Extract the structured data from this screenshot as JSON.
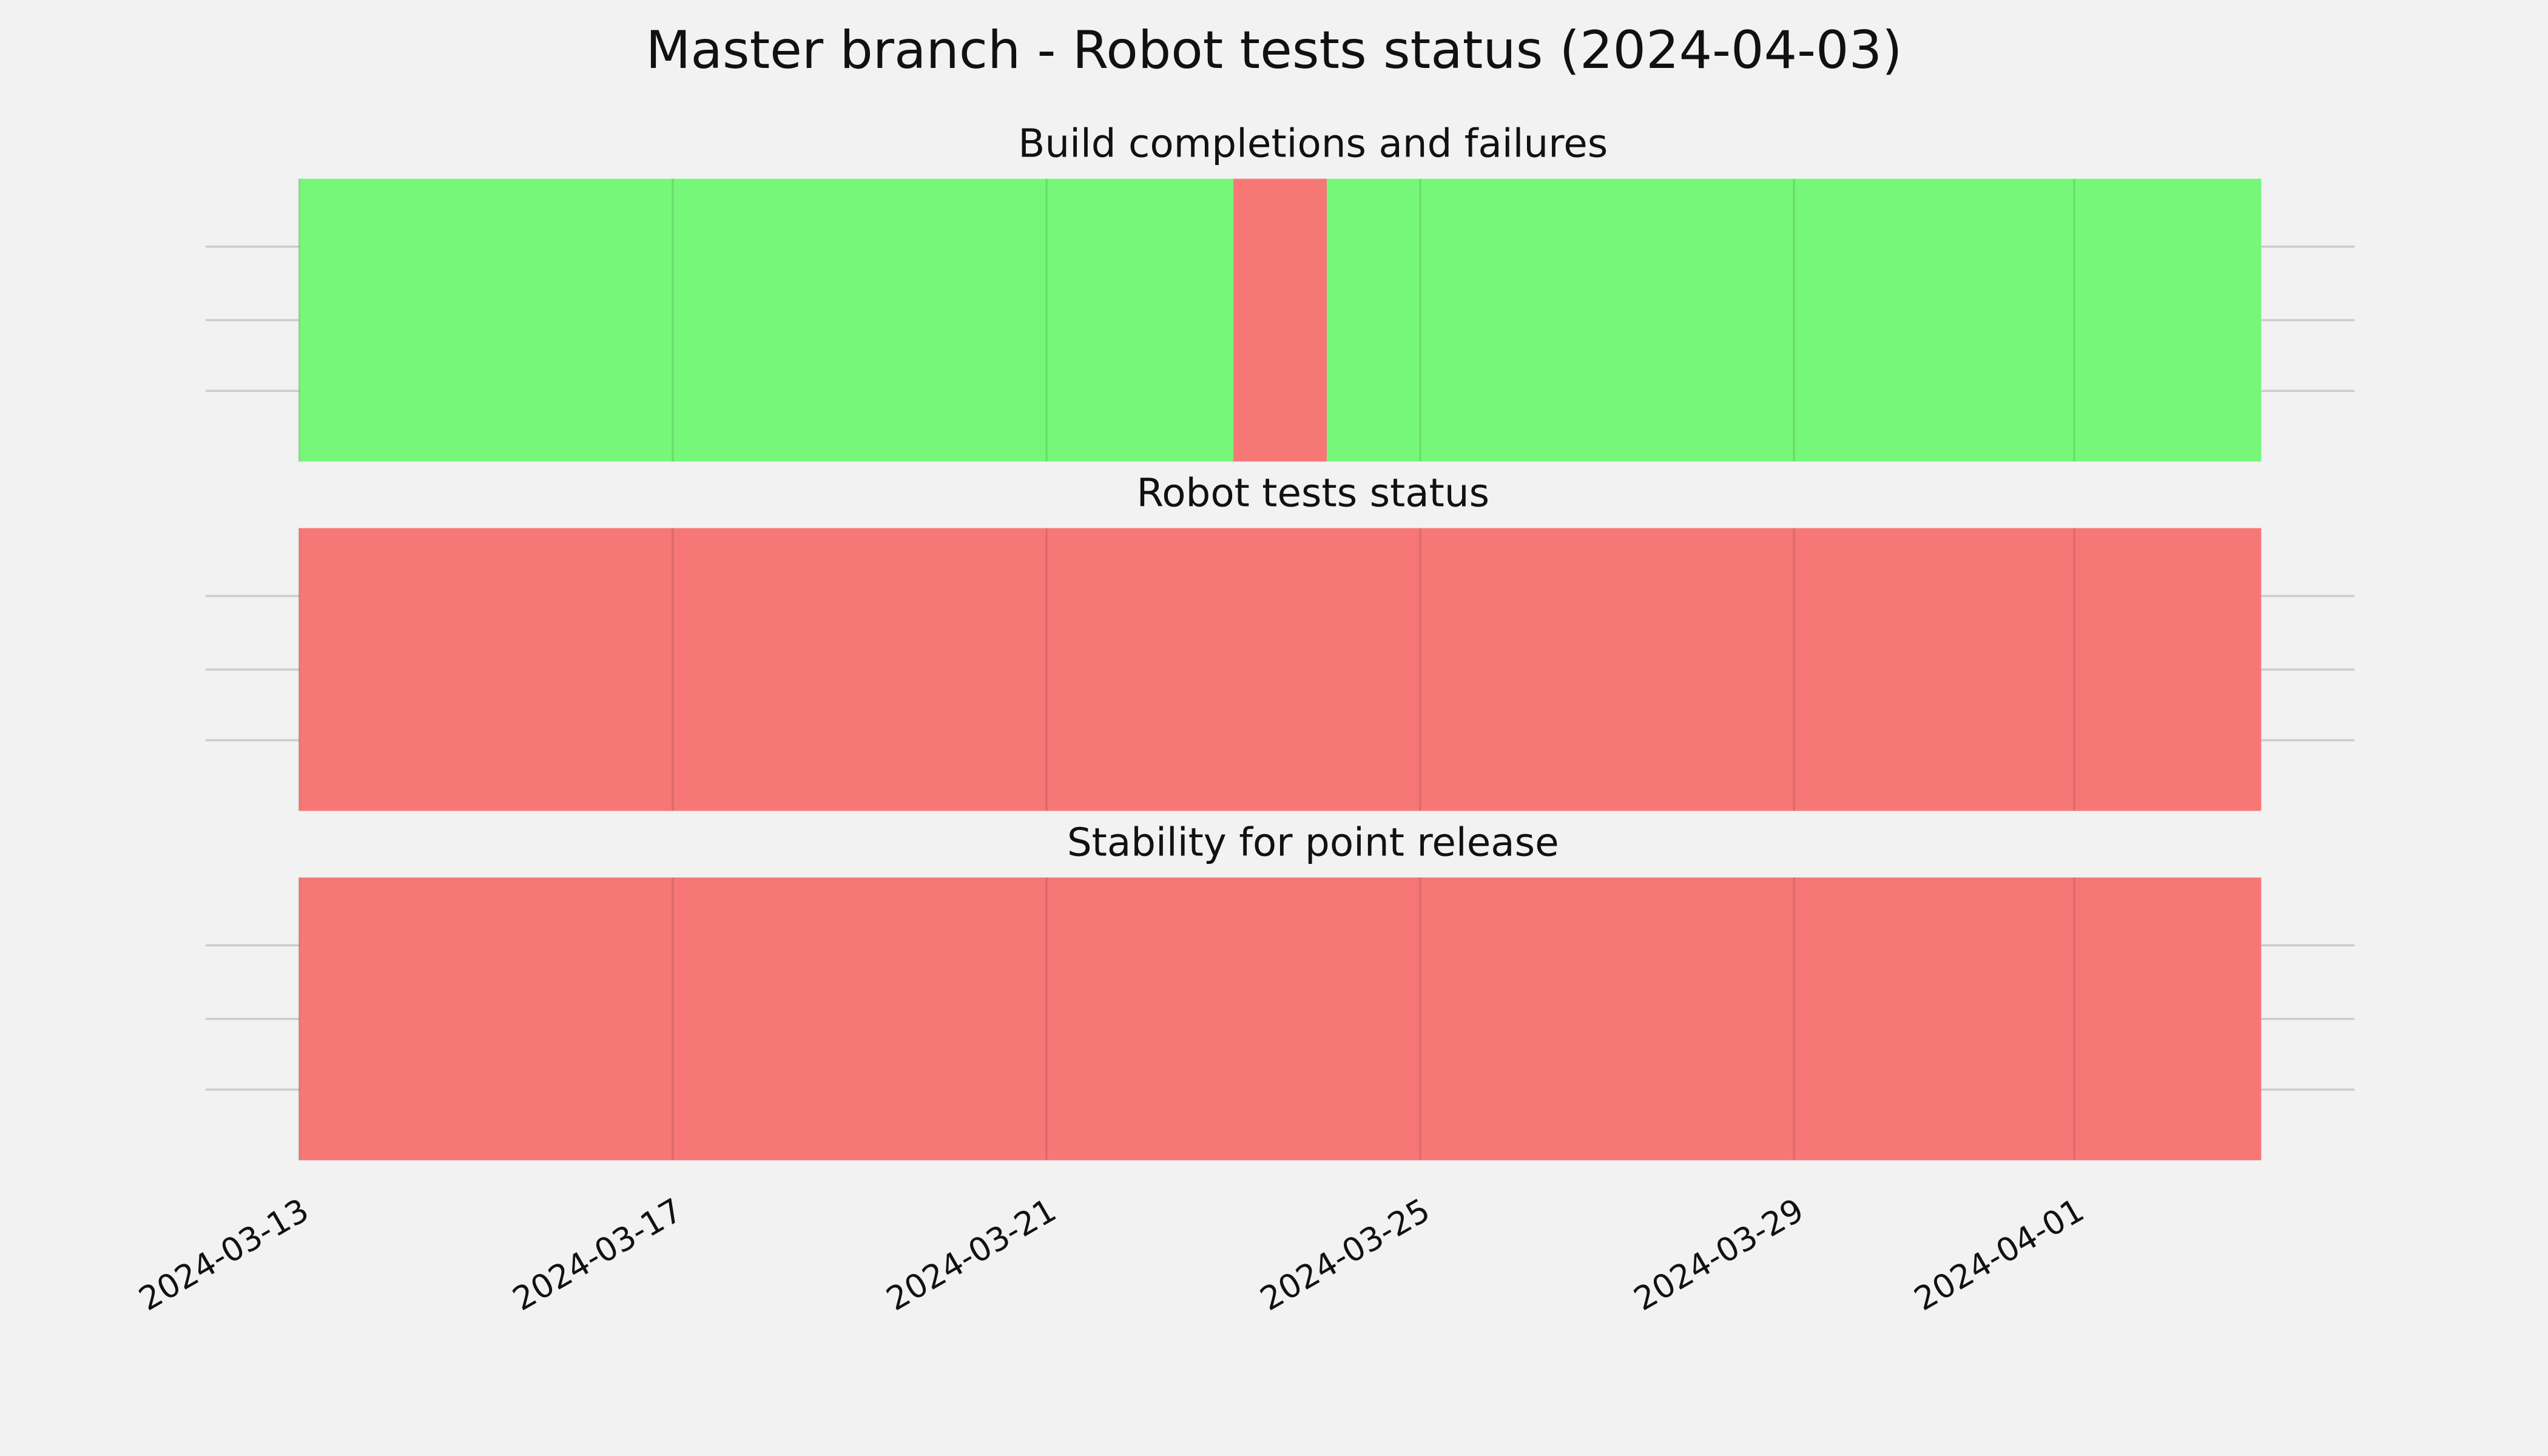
{
  "chart_data": {
    "type": "timeline",
    "title": "Master branch - Robot tests status (2024-04-03)",
    "xlim": [
      "2024-03-12",
      "2024-04-04"
    ],
    "xticks": [
      "2024-03-13",
      "2024-03-17",
      "2024-03-21",
      "2024-03-25",
      "2024-03-29",
      "2024-04-01"
    ],
    "grid": true,
    "colors": {
      "success": "#77f77a",
      "failure": "#f77777"
    },
    "panels": [
      {
        "title": "Build completions and failures",
        "segments": [
          {
            "start": "2024-03-13",
            "end": "2024-03-23",
            "status": "success"
          },
          {
            "start": "2024-03-23",
            "end": "2024-03-24",
            "status": "failure"
          },
          {
            "start": "2024-03-24",
            "end": "2024-04-03",
            "status": "success"
          }
        ]
      },
      {
        "title": "Robot tests status",
        "segments": [
          {
            "start": "2024-03-13",
            "end": "2024-04-03",
            "status": "failure"
          }
        ]
      },
      {
        "title": "Stability for point release",
        "segments": [
          {
            "start": "2024-03-13",
            "end": "2024-04-03",
            "status": "failure"
          }
        ]
      }
    ]
  }
}
